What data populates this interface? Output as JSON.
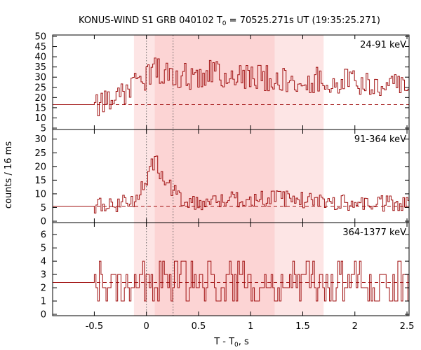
{
  "chart_data": {
    "type": "line",
    "title_prefix": "KONUS-WIND S1 GRB 040102 T",
    "title_sub": "0",
    "title_suffix": " = 70525.271s UT (19:35:25.271)",
    "xlabel_prefix": "T - T",
    "xlabel_sub": "0",
    "xlabel_suffix": ", s",
    "ylabel": "counts / 16 ms",
    "xlim": [
      -0.9,
      2.52
    ],
    "x_ticks": [
      -0.5,
      0,
      0.5,
      1,
      1.5,
      2,
      2.5
    ],
    "x_tick_labels": [
      "-0.5",
      "0",
      "0.5",
      "1",
      "1.5",
      "2",
      "2.5"
    ],
    "dotted_lines_x": [
      0.0,
      0.256
    ],
    "shaded_intervals": [
      {
        "from": -0.12,
        "to": 1.7,
        "color": "#fde5e5"
      },
      {
        "from": 0.08,
        "to": 1.23,
        "color": "#fcd4d4"
      }
    ],
    "line_color": "#a01010",
    "bin_width": 0.016,
    "pre_burst_end": -0.5,
    "panels": [
      {
        "name": "24-91 keV",
        "ylim": [
          5,
          50
        ],
        "y_ticks": [
          5,
          10,
          15,
          20,
          25,
          30,
          35,
          40,
          45,
          50
        ],
        "background": 16.5,
        "anchors": [
          [
            -0.9,
            16.5
          ],
          [
            -0.5,
            16.5
          ],
          [
            -0.45,
            17
          ],
          [
            -0.4,
            18
          ],
          [
            -0.3,
            20
          ],
          [
            -0.2,
            23
          ],
          [
            -0.1,
            26
          ],
          [
            0.0,
            30
          ],
          [
            0.1,
            34
          ],
          [
            0.2,
            32
          ],
          [
            0.4,
            30
          ],
          [
            0.6,
            32
          ],
          [
            0.8,
            30
          ],
          [
            1.0,
            31
          ],
          [
            1.2,
            29
          ],
          [
            1.5,
            29
          ],
          [
            1.8,
            28
          ],
          [
            2.1,
            27
          ],
          [
            2.52,
            27
          ]
        ],
        "noise": 6.5
      },
      {
        "name": "91-364 keV",
        "ylim": [
          0,
          33
        ],
        "y_ticks": [
          0,
          5,
          10,
          15,
          20,
          25,
          30
        ],
        "background": 5.5,
        "anchors": [
          [
            -0.9,
            5.3
          ],
          [
            -0.5,
            5.3
          ],
          [
            -0.45,
            5.5
          ],
          [
            -0.3,
            6
          ],
          [
            -0.1,
            8.5
          ],
          [
            0.0,
            14
          ],
          [
            0.05,
            20
          ],
          [
            0.1,
            22
          ],
          [
            0.15,
            16
          ],
          [
            0.25,
            11
          ],
          [
            0.4,
            7
          ],
          [
            0.6,
            7
          ],
          [
            0.8,
            8
          ],
          [
            1.0,
            8
          ],
          [
            1.2,
            8.5
          ],
          [
            1.4,
            8
          ],
          [
            1.6,
            7.5
          ],
          [
            1.8,
            7
          ],
          [
            2.1,
            6.5
          ],
          [
            2.52,
            6
          ]
        ],
        "noise": 3.0
      },
      {
        "name": "364-1377 keV",
        "ylim": [
          0,
          6.8
        ],
        "y_ticks": [
          0,
          1,
          2,
          3,
          4,
          5,
          6
        ],
        "background": 2.4,
        "anchors": [
          [
            -0.9,
            2.3
          ],
          [
            -0.5,
            2.3
          ],
          [
            -0.4,
            2.4
          ],
          [
            0.0,
            2.7
          ],
          [
            0.1,
            2.9
          ],
          [
            0.3,
            2.6
          ],
          [
            0.8,
            2.5
          ],
          [
            1.2,
            2.4
          ],
          [
            1.8,
            2.3
          ],
          [
            2.52,
            2.3
          ]
        ],
        "noise": 1.5
      }
    ]
  }
}
